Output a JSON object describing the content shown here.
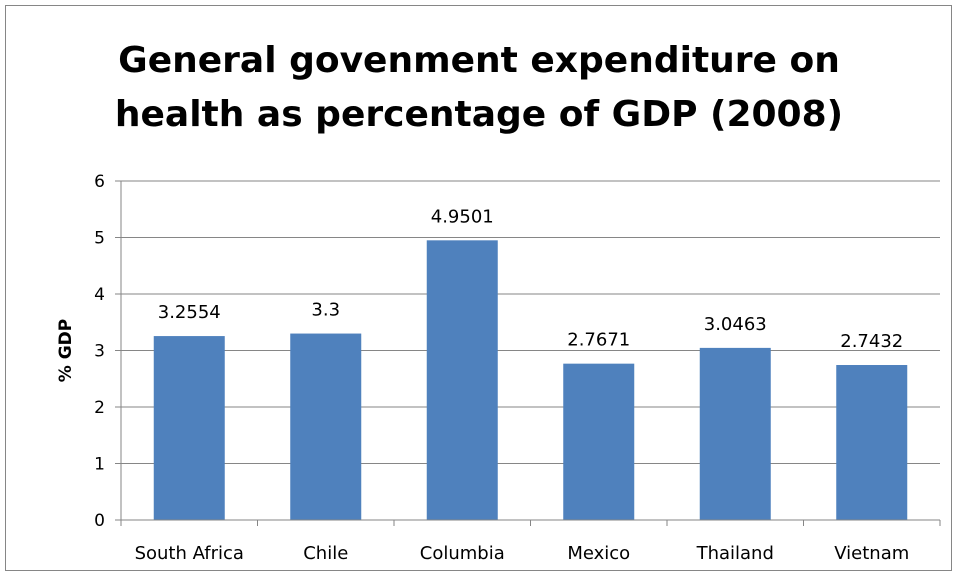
{
  "chart_data": {
    "type": "bar",
    "title_line1": "General govenment expenditure on",
    "title_line2": "health as percentage of GDP (2008)",
    "xlabel": "",
    "ylabel": "% GDP",
    "ylim": [
      0,
      6
    ],
    "yticks": [
      "0",
      "1",
      "2",
      "3",
      "4",
      "5",
      "6"
    ],
    "grid": true,
    "legend": "none",
    "bar_color": "#4F81BD",
    "categories": [
      "South Africa",
      "Chile",
      "Columbia",
      "Mexico",
      "Thailand",
      "Vietnam"
    ],
    "values": [
      3.2554,
      3.3,
      4.9501,
      2.7671,
      3.0463,
      2.7432
    ],
    "value_labels": [
      "3.2554",
      "3.3",
      "4.9501",
      "2.7671",
      "3.0463",
      "2.7432"
    ]
  }
}
